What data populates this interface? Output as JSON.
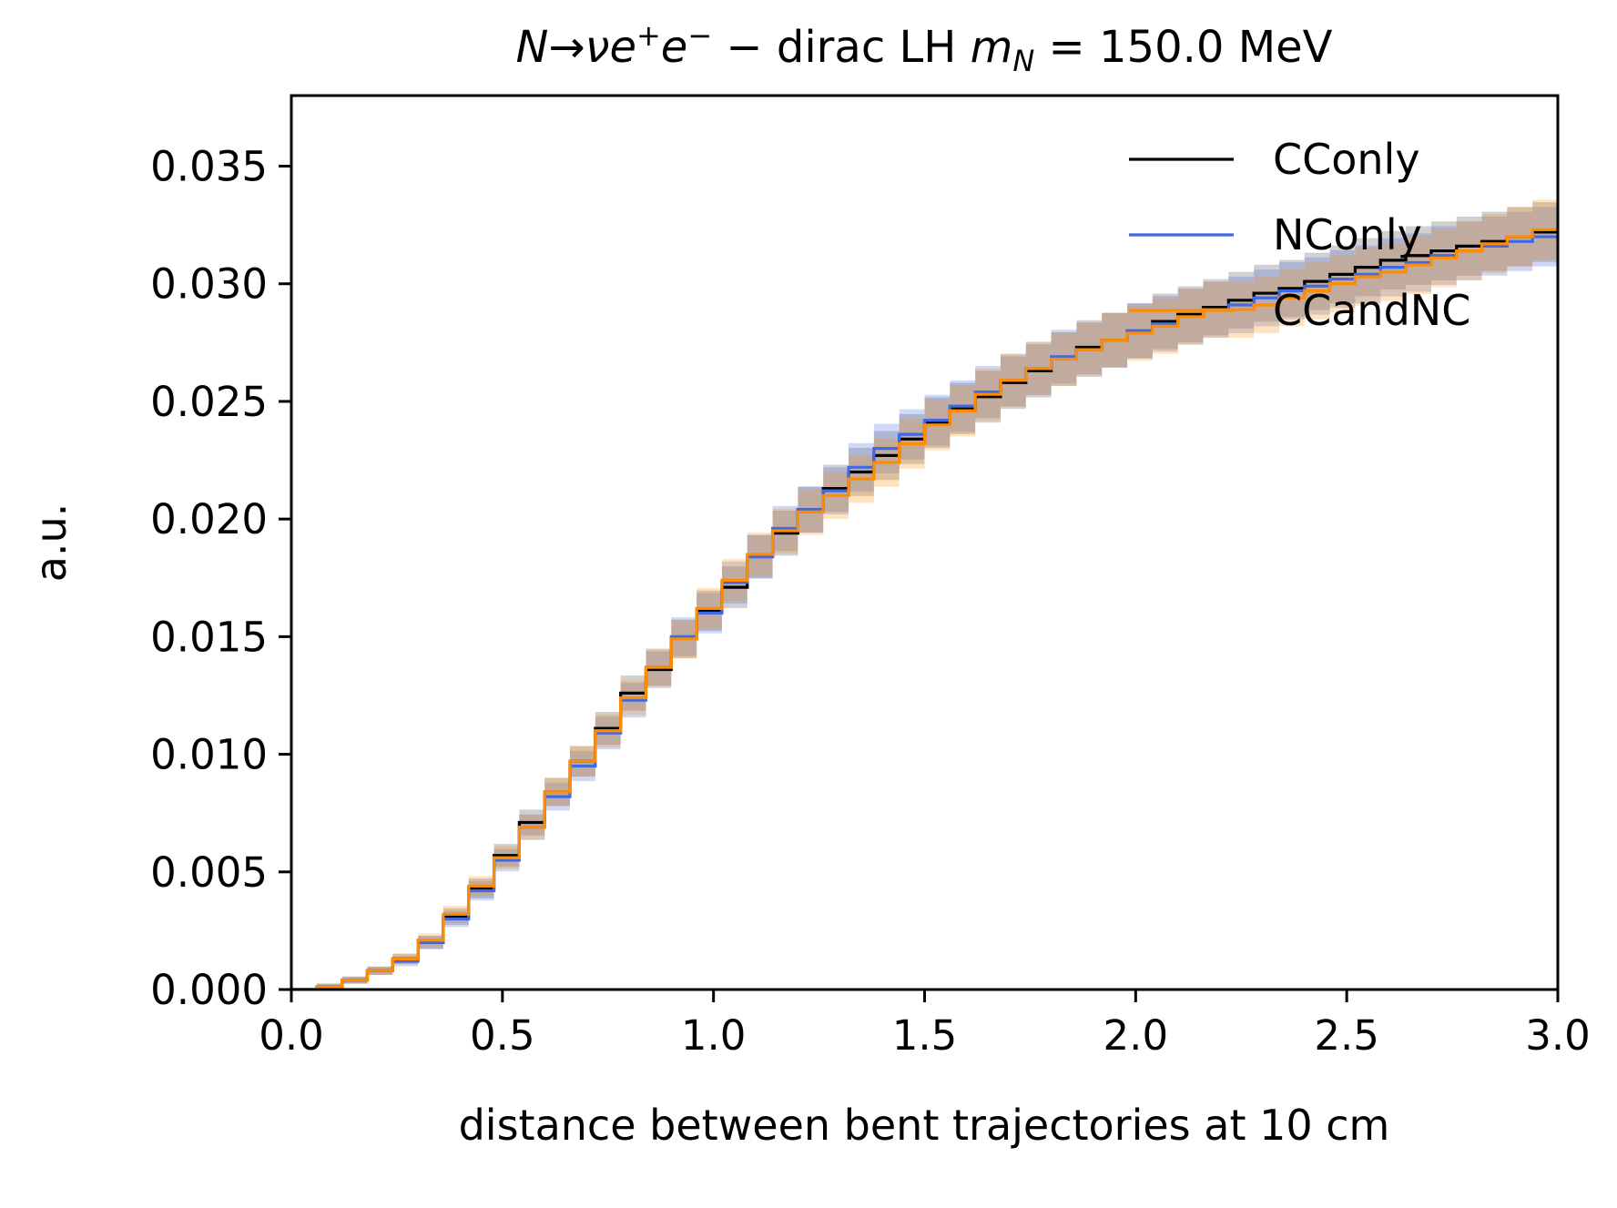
{
  "chart_data": {
    "type": "line",
    "drawstyle": "steps",
    "title": "N→νe⁺e⁻ − dirac LH m_N = 150.0 MeV",
    "title_parts": {
      "process": "N→νe",
      "sup1": "+",
      "e2": "e",
      "sup2": "−",
      "middle": " − dirac LH ",
      "mass_symbol": "m",
      "mass_sub": "N",
      "mass_value": " = 150.0 MeV"
    },
    "xlabel": "distance between bent trajectories at 10 cm",
    "ylabel": "a.u.",
    "xlim": [
      0.0,
      3.0
    ],
    "ylim": [
      0.0,
      0.038
    ],
    "xticks": [
      "0.0",
      "0.5",
      "1.0",
      "1.5",
      "2.0",
      "2.5",
      "3.0"
    ],
    "yticks": [
      "0.000",
      "0.005",
      "0.010",
      "0.015",
      "0.020",
      "0.025",
      "0.030",
      "0.035"
    ],
    "grid": false,
    "legend_placement": "top-right",
    "bin_edges_start": 0.0,
    "bin_width": 0.06,
    "series": [
      {
        "name": "CConly",
        "color": "#000000",
        "band_color": "#555555",
        "values": [
          0.0,
          0.0001,
          0.0004,
          0.0008,
          0.0013,
          0.002,
          0.0031,
          0.0043,
          0.0057,
          0.0071,
          0.0084,
          0.0097,
          0.0111,
          0.0126,
          0.0136,
          0.0149,
          0.0161,
          0.0171,
          0.0184,
          0.0194,
          0.0204,
          0.0213,
          0.022,
          0.0227,
          0.0234,
          0.0241,
          0.0247,
          0.0252,
          0.0258,
          0.0263,
          0.0268,
          0.0273,
          0.0276,
          0.028,
          0.0284,
          0.0287,
          0.029,
          0.0293,
          0.0296,
          0.0298,
          0.0301,
          0.0304,
          0.0307,
          0.031,
          0.0312,
          0.0314,
          0.0316,
          0.0318,
          0.032,
          0.0322
        ]
      },
      {
        "name": "NConly",
        "color": "#4169e1",
        "band_color": "#4169e1",
        "values": [
          0.0,
          0.0001,
          0.0004,
          0.0008,
          0.0012,
          0.002,
          0.003,
          0.0042,
          0.0055,
          0.0069,
          0.0082,
          0.0095,
          0.0109,
          0.0123,
          0.0137,
          0.015,
          0.016,
          0.0173,
          0.0184,
          0.0196,
          0.0204,
          0.0212,
          0.0222,
          0.023,
          0.0236,
          0.0242,
          0.0248,
          0.0254,
          0.0259,
          0.0264,
          0.0269,
          0.0272,
          0.0276,
          0.028,
          0.0283,
          0.0286,
          0.0289,
          0.0291,
          0.0294,
          0.0297,
          0.0299,
          0.0302,
          0.0304,
          0.0307,
          0.0309,
          0.0312,
          0.0314,
          0.0316,
          0.0318,
          0.032
        ]
      },
      {
        "name": "CCandNC",
        "color": "#ff8c00",
        "band_color": "#ff8c00",
        "values": [
          0.0,
          0.0001,
          0.0004,
          0.0008,
          0.0013,
          0.0021,
          0.0032,
          0.0044,
          0.0056,
          0.0069,
          0.0084,
          0.0097,
          0.011,
          0.0124,
          0.0137,
          0.0149,
          0.0162,
          0.0174,
          0.0185,
          0.0195,
          0.0203,
          0.021,
          0.0217,
          0.0224,
          0.0232,
          0.024,
          0.0246,
          0.0253,
          0.0259,
          0.0264,
          0.0268,
          0.0272,
          0.0276,
          0.0279,
          0.0282,
          0.0286,
          0.0289,
          0.0289,
          0.0291,
          0.0294,
          0.0297,
          0.03,
          0.0303,
          0.0305,
          0.0308,
          0.0311,
          0.0314,
          0.0317,
          0.032,
          0.0323
        ]
      }
    ]
  }
}
